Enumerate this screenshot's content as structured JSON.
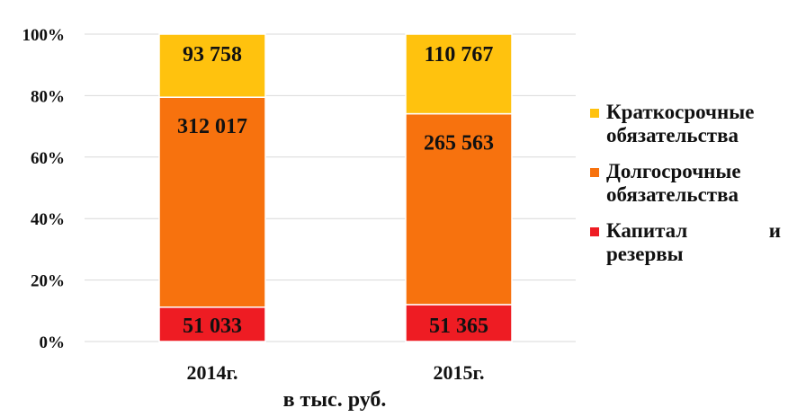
{
  "chart_data": {
    "type": "bar",
    "stacked": true,
    "normalized": true,
    "categories": [
      "2014г.",
      "2015г."
    ],
    "series": [
      {
        "name": "Капитал и резервы",
        "values": [
          51033,
          51365
        ],
        "labels": [
          "51 033",
          "51 365"
        ],
        "color": "#ee1c23"
      },
      {
        "name": "Долгосрочные обязательства",
        "values": [
          312017,
          265563
        ],
        "labels": [
          "312 017",
          "265 563"
        ],
        "color": "#f7720e"
      },
      {
        "name": "Краткосрочные обязательства",
        "values": [
          93758,
          110767
        ],
        "labels": [
          "93 758",
          "110 767"
        ],
        "color": "#ffc20e"
      }
    ],
    "yticks": [
      "0%",
      "20%",
      "40%",
      "60%",
      "80%",
      "100%"
    ],
    "ylim": [
      0,
      100
    ],
    "grid": true,
    "legend": "right",
    "unit_label": "в тыс. руб."
  }
}
